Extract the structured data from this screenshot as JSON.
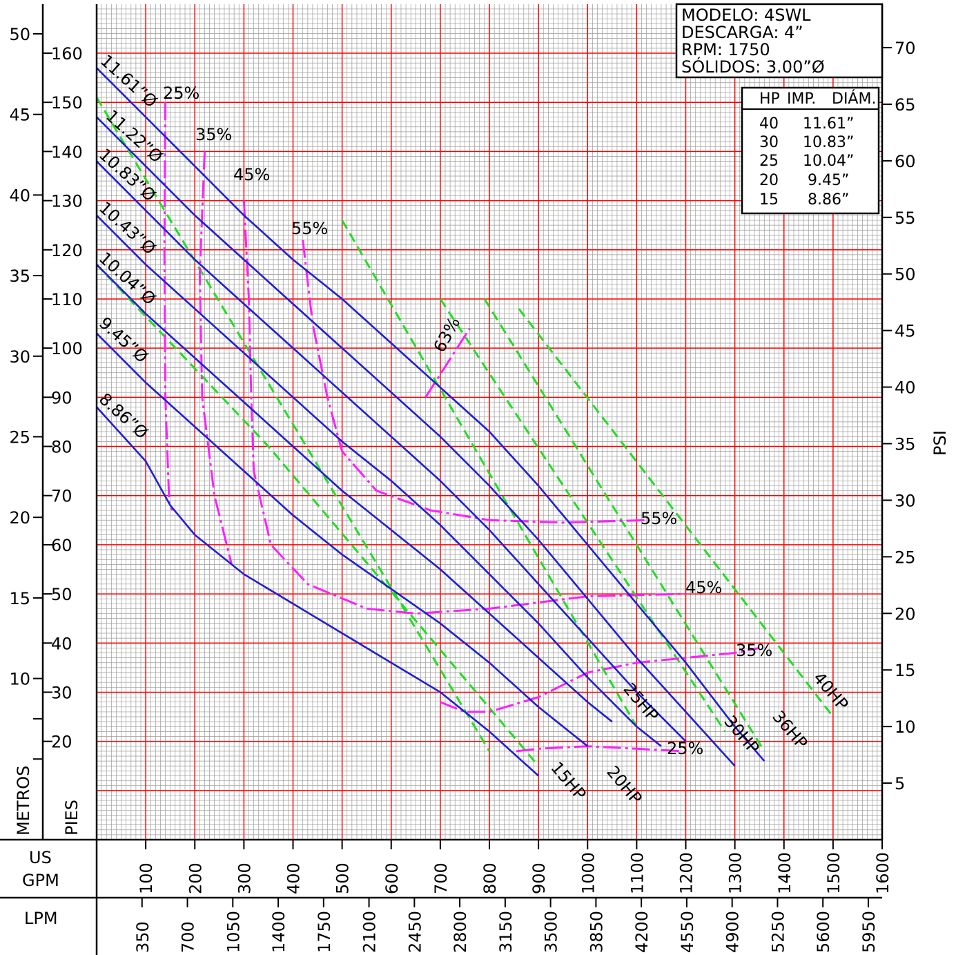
{
  "chart_data": {
    "type": "line",
    "info_box": {
      "lines": [
        "MODELO:  4SWL",
        "DESCARGA:  4”",
        "RPM:  1750",
        "SÓLIDOS:  3.00”Ø"
      ]
    },
    "hp_table": {
      "headers": [
        "HP",
        "IMP.",
        "DIÁM."
      ],
      "rows": [
        [
          "40",
          "11.61”"
        ],
        [
          "30",
          "10.83”"
        ],
        [
          "25",
          "10.04”"
        ],
        [
          "20",
          "9.45”"
        ],
        [
          "15",
          "8.86”"
        ]
      ]
    },
    "axes": {
      "metros_label": "METROS",
      "pies_label": "PIES",
      "psi_label": "PSI",
      "usgpm_label": [
        "US",
        "GPM"
      ],
      "lpm_label": "LPM",
      "gpm_range": [
        0,
        1600
      ],
      "pies_range": [
        0,
        160
      ],
      "metros_ticks": [
        "50",
        "45",
        "40",
        "35",
        "30",
        "25",
        "20",
        "15",
        "10"
      ],
      "metros_values": [
        50,
        45,
        40,
        35,
        30,
        25,
        20,
        15,
        10
      ],
      "pies_ticks": [
        "160",
        "150",
        "140",
        "130",
        "120",
        "110",
        "100",
        "90",
        "80",
        "70",
        "60",
        "50",
        "40",
        "30",
        "20"
      ],
      "pies_values": [
        160,
        150,
        140,
        130,
        120,
        110,
        100,
        90,
        80,
        70,
        60,
        50,
        40,
        30,
        20
      ],
      "psi_ticks": [
        "70",
        "65",
        "60",
        "55",
        "50",
        "45",
        "40",
        "35",
        "30",
        "25",
        "20",
        "15",
        "10",
        "5"
      ],
      "psi_values": [
        70,
        65,
        60,
        55,
        50,
        45,
        40,
        35,
        30,
        25,
        20,
        15,
        10,
        5
      ],
      "gpm_ticks": [
        "100",
        "200",
        "300",
        "400",
        "500",
        "600",
        "700",
        "800",
        "900",
        "1000",
        "1100",
        "1200",
        "1300",
        "1400",
        "1500",
        "1600"
      ],
      "gpm_values": [
        100,
        200,
        300,
        400,
        500,
        600,
        700,
        800,
        900,
        1000,
        1100,
        1200,
        1300,
        1400,
        1500,
        1600
      ],
      "lpm_ticks": [
        "350",
        "700",
        "1050",
        "1400",
        "1750",
        "2100",
        "2450",
        "2800",
        "3150",
        "3500",
        "3850",
        "4200",
        "4550",
        "4900",
        "5250",
        "5600",
        "5950"
      ],
      "lpm_values": [
        350,
        700,
        1050,
        1400,
        1750,
        2100,
        2450,
        2800,
        3150,
        3500,
        3850,
        4200,
        4550,
        4900,
        5250,
        5600,
        5950
      ]
    },
    "impeller_curves": [
      {
        "name": "11.61”Ø",
        "points": [
          [
            0,
            157
          ],
          [
            100,
            147
          ],
          [
            200,
            137
          ],
          [
            300,
            127
          ],
          [
            400,
            118
          ],
          [
            500,
            110
          ],
          [
            600,
            101
          ],
          [
            700,
            92
          ],
          [
            800,
            83
          ],
          [
            900,
            72
          ],
          [
            1000,
            60
          ],
          [
            1100,
            48
          ],
          [
            1200,
            36
          ],
          [
            1300,
            23
          ],
          [
            1360,
            16
          ]
        ]
      },
      {
        "name": "11.22”Ø",
        "points": [
          [
            0,
            147
          ],
          [
            100,
            137
          ],
          [
            200,
            127
          ],
          [
            300,
            118
          ],
          [
            400,
            109
          ],
          [
            500,
            100
          ],
          [
            600,
            91
          ],
          [
            700,
            82
          ],
          [
            800,
            72
          ],
          [
            900,
            61
          ],
          [
            1000,
            49
          ],
          [
            1100,
            37
          ],
          [
            1200,
            26
          ],
          [
            1300,
            15
          ]
        ]
      },
      {
        "name": "10.83”Ø",
        "points": [
          [
            0,
            138
          ],
          [
            100,
            128
          ],
          [
            200,
            118
          ],
          [
            300,
            109
          ],
          [
            400,
            100
          ],
          [
            500,
            91
          ],
          [
            600,
            82
          ],
          [
            700,
            73
          ],
          [
            800,
            63
          ],
          [
            900,
            52
          ],
          [
            1000,
            41
          ],
          [
            1100,
            30
          ],
          [
            1200,
            20
          ]
        ]
      },
      {
        "name": "10.43”Ø",
        "points": [
          [
            0,
            127
          ],
          [
            100,
            117
          ],
          [
            200,
            108
          ],
          [
            300,
            99
          ],
          [
            400,
            90
          ],
          [
            500,
            81
          ],
          [
            600,
            73
          ],
          [
            700,
            64
          ],
          [
            800,
            54
          ],
          [
            900,
            44
          ],
          [
            1000,
            33
          ],
          [
            1100,
            23
          ],
          [
            1150,
            19
          ]
        ]
      },
      {
        "name": "10.04”Ø",
        "points": [
          [
            0,
            117
          ],
          [
            100,
            107
          ],
          [
            200,
            98
          ],
          [
            300,
            89
          ],
          [
            400,
            80
          ],
          [
            500,
            71
          ],
          [
            600,
            63
          ],
          [
            700,
            55
          ],
          [
            800,
            46
          ],
          [
            900,
            37
          ],
          [
            1000,
            28
          ],
          [
            1050,
            24
          ]
        ]
      },
      {
        "name": "9.45”Ø",
        "points": [
          [
            0,
            103
          ],
          [
            100,
            93
          ],
          [
            200,
            84
          ],
          [
            300,
            75
          ],
          [
            400,
            66
          ],
          [
            500,
            58
          ],
          [
            600,
            51
          ],
          [
            700,
            44
          ],
          [
            800,
            36
          ],
          [
            900,
            27
          ],
          [
            1000,
            19
          ]
        ]
      },
      {
        "name": "8.86”Ø",
        "points": [
          [
            0,
            88
          ],
          [
            100,
            77
          ],
          [
            150,
            68
          ],
          [
            200,
            62
          ],
          [
            300,
            54
          ],
          [
            400,
            48
          ],
          [
            500,
            42
          ],
          [
            600,
            36
          ],
          [
            700,
            30
          ],
          [
            800,
            22
          ],
          [
            900,
            13
          ]
        ]
      }
    ],
    "efficiency_curves": [
      {
        "name": "25%",
        "points": [
          [
            140,
            150
          ],
          [
            138,
            120
          ],
          [
            140,
            90
          ],
          [
            148,
            68
          ],
          [
            155,
            67
          ]
        ],
        "tail_points": [
          [
            855,
            18
          ],
          [
            900,
            18.5
          ],
          [
            1000,
            19
          ],
          [
            1100,
            18.5
          ],
          [
            1195,
            18
          ]
        ]
      },
      {
        "name": "35%",
        "points": [
          [
            220,
            140
          ],
          [
            210,
            115
          ],
          [
            215,
            90
          ],
          [
            240,
            70
          ],
          [
            275,
            56
          ]
        ],
        "tail_points": [
          [
            700,
            28
          ],
          [
            750,
            26
          ],
          [
            800,
            26
          ],
          [
            900,
            29
          ],
          [
            1000,
            34
          ],
          [
            1100,
            36
          ],
          [
            1200,
            37
          ],
          [
            1300,
            38
          ],
          [
            1350,
            39
          ]
        ]
      },
      {
        "name": "45%",
        "points": [
          [
            300,
            130
          ],
          [
            310,
            110
          ],
          [
            315,
            90
          ],
          [
            320,
            75
          ],
          [
            355,
            60
          ],
          [
            430,
            52
          ],
          [
            550,
            47
          ],
          [
            650,
            46
          ],
          [
            800,
            47
          ],
          [
            1000,
            49.5
          ],
          [
            1200,
            50
          ]
        ]
      },
      {
        "name": "55%",
        "points": [
          [
            420,
            122
          ],
          [
            440,
            105
          ],
          [
            470,
            90
          ],
          [
            500,
            79
          ],
          [
            570,
            71
          ],
          [
            680,
            67
          ],
          [
            800,
            65
          ],
          [
            950,
            64.5
          ],
          [
            1120,
            65
          ]
        ]
      },
      {
        "name": "63%",
        "points": [
          [
            670,
            90
          ],
          [
            760,
            104
          ]
        ]
      }
    ],
    "hp_lines": [
      {
        "name": "15HP",
        "points": [
          [
            0,
            151
          ],
          [
            800,
            18
          ]
        ]
      },
      {
        "name": "20HP",
        "points": [
          [
            0,
            117
          ],
          [
            350,
            80
          ],
          [
            900,
            15
          ]
        ]
      },
      {
        "name": "25HP",
        "points": [
          [
            500,
            126
          ],
          [
            1100,
            23
          ]
        ]
      },
      {
        "name": "30HP",
        "points": [
          [
            700,
            110
          ],
          [
            1280,
            22
          ]
        ]
      },
      {
        "name": "36HP",
        "points": [
          [
            790,
            110
          ],
          [
            1360,
            18
          ]
        ]
      },
      {
        "name": "40HP",
        "points": [
          [
            860,
            108
          ],
          [
            1500,
            25
          ]
        ]
      }
    ],
    "labels": {
      "eff_25": "25%",
      "eff_35": "35%",
      "eff_45": "45%",
      "eff_55": "55%",
      "eff_63": "63%",
      "eff_55b": "55%",
      "eff_45b": "45%",
      "eff_35b": "35%",
      "eff_25b": "25%",
      "hp_15": "15HP",
      "hp_20": "20HP",
      "hp_25": "25HP",
      "hp_30": "30HP",
      "hp_36": "36HP",
      "hp_40": "40HP",
      "imp_1161": "11.61”Ø",
      "imp_1122": "11.22”Ø",
      "imp_1083": "10.83”Ø",
      "imp_1043": "10.43”Ø",
      "imp_1004": "10.04”Ø",
      "imp_945": "9.45”Ø",
      "imp_886": "8.86”Ø"
    },
    "grid": true,
    "colors": {
      "impeller": "#1f1fd6",
      "efficiency": "#ff1fff",
      "hp": "#22dd22",
      "major_grid": "#ff0000",
      "minor_grid": "#9a9a9a"
    }
  }
}
